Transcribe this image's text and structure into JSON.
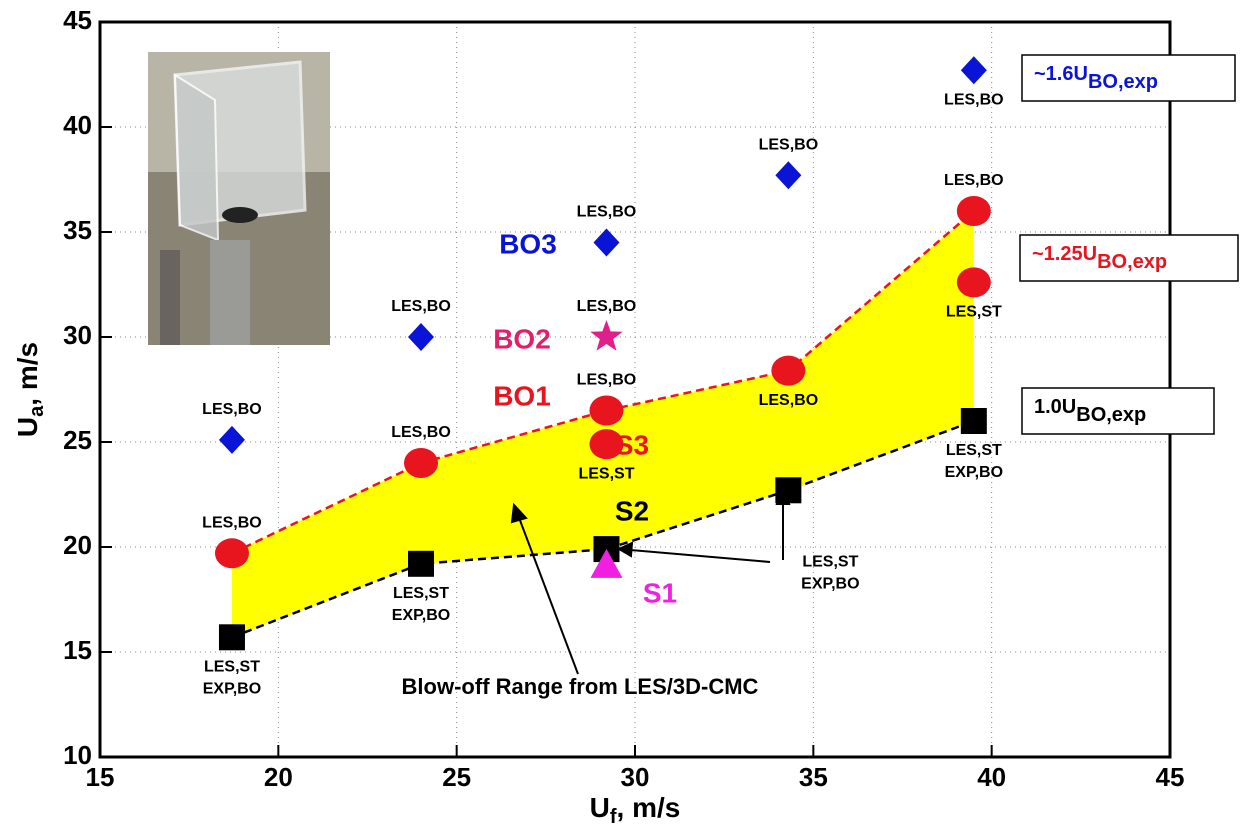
{
  "chart_data": {
    "type": "scatter",
    "x_label": {
      "main": "U",
      "sub": "f",
      "rest": ", m/s"
    },
    "y_label": {
      "main": "U",
      "sub": "a",
      "rest": ", m/s"
    },
    "xlim": [
      15,
      45
    ],
    "ylim": [
      10,
      45
    ],
    "xticks": [
      15,
      20,
      25,
      30,
      35,
      40,
      45
    ],
    "yticks": [
      10,
      15,
      20,
      25,
      30,
      35,
      40,
      45
    ],
    "grid": true,
    "area_color": "#ffff00",
    "series": [
      {
        "marker": "diamond",
        "color": "#0a14d6",
        "x": [
          18.7,
          24,
          29.2,
          34.3,
          39.5
        ],
        "values": [
          25.1,
          30,
          34.5,
          37.7,
          42.7
        ],
        "labels": [
          "LES,BO",
          "LES,BO",
          "LES,BO",
          "LES,BO",
          "LES,BO"
        ]
      },
      {
        "marker": "circle",
        "color": "#e8141e",
        "line": "dashed",
        "x": [
          18.7,
          24,
          29.2,
          34.3,
          39.5
        ],
        "values": [
          19.7,
          24,
          26.5,
          28.4,
          36
        ],
        "labels": [
          "LES,BO",
          "LES,BO",
          "LES,BO",
          "LES,BO",
          "LES,BO"
        ]
      },
      {
        "marker": "circle",
        "color": "#e8141e",
        "x": [
          29.2,
          39.5
        ],
        "values": [
          24.9,
          32.6
        ],
        "labels": [
          "LES,ST",
          "LES,ST"
        ]
      },
      {
        "marker": "square",
        "color": "#000000",
        "line": "dashed",
        "x": [
          18.7,
          24,
          29.2,
          34.3,
          39.5
        ],
        "values": [
          15.7,
          19.2,
          19.9,
          22.7,
          26
        ],
        "labels": [
          [
            "LES,ST",
            "EXP,BO"
          ],
          [
            "LES,ST",
            "EXP,BO"
          ],
          null,
          [
            "LES,ST",
            "EXP,BO"
          ],
          [
            "LES,ST",
            "EXP,BO"
          ]
        ]
      },
      {
        "marker": "star",
        "color": "#e0208a",
        "x": [
          29.2
        ],
        "values": [
          30
        ],
        "labels": [
          "LES,BO"
        ]
      },
      {
        "marker": "triangle",
        "color": "#f020e0",
        "x": [
          29.2
        ],
        "values": [
          19.1
        ],
        "labels": [
          null
        ]
      }
    ],
    "annotations": [
      "BO3",
      "BO2",
      "BO1",
      "S3",
      "S2",
      "S1",
      "Blow-off Range from LES/3D-CMC"
    ],
    "boxes": [
      {
        "main": "~1.6U",
        "sub": "BO,exp",
        "color": "#0a14d6"
      },
      {
        "main": "~1.25U",
        "sub": "BO,exp",
        "color": "#e8141e"
      },
      {
        "main": "1.0U",
        "sub": "BO,exp",
        "color": "#000000"
      }
    ]
  }
}
